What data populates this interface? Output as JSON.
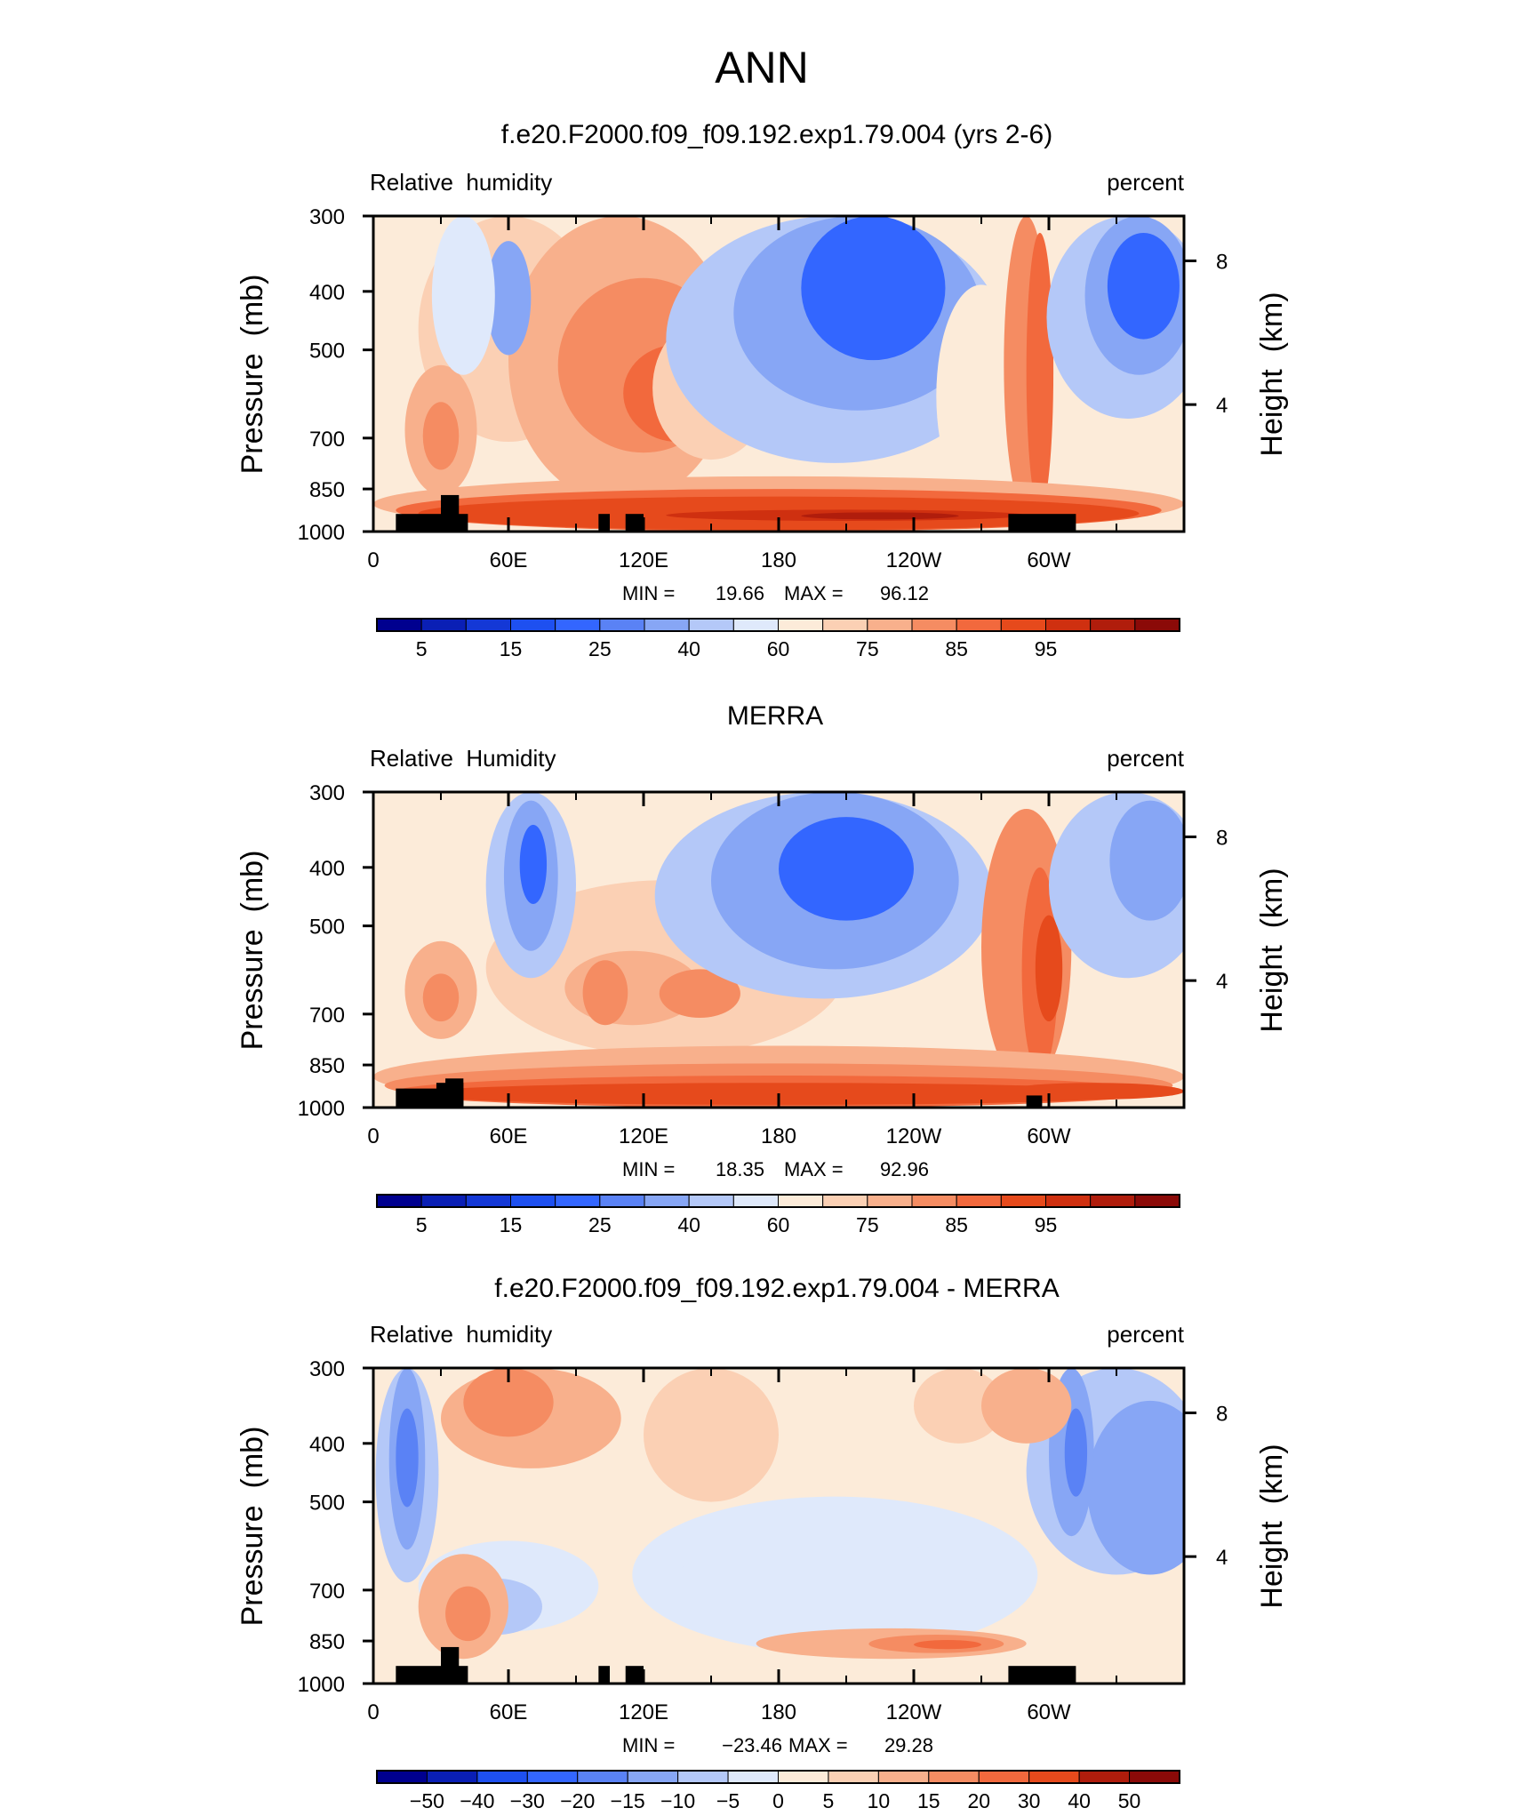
{
  "page": {
    "main_title": "ANN"
  },
  "colormaps": {
    "full": [
      "#00008f",
      "#0a1fb5",
      "#1438d6",
      "#1e50f0",
      "#3366ff",
      "#5a82f5",
      "#87a6f5",
      "#b4c8f8",
      "#dfe9fb",
      "#fcebd9",
      "#fbd0b4",
      "#f8b08c",
      "#f58c62",
      "#f2693d",
      "#e64a1c",
      "#cf3010",
      "#b01d0c",
      "#8b0a08"
    ],
    "diff": [
      "#00008f",
      "#0a1fb5",
      "#1e50f0",
      "#3366ff",
      "#5a82f5",
      "#87a6f5",
      "#b4c8f8",
      "#dfe9fb",
      "#fcebd9",
      "#fbd0b4",
      "#f8b08c",
      "#f58c62",
      "#f2693d",
      "#e64a1c",
      "#b01d0c",
      "#8b0a08"
    ]
  },
  "chart_data": [
    {
      "type": "heatmap",
      "title": "f.e20.F2000.f09_f09.192.exp1.79.004 (yrs 2-6)",
      "left_label": "Relative  humidity",
      "right_label": "percent",
      "ylabel": "Pressure  (mb)",
      "ylabel_right": "Height  (km)",
      "x_ticks": [
        "0",
        "60E",
        "120E",
        "180",
        "120W",
        "60W"
      ],
      "y_ticks": [
        "300",
        "400",
        "500",
        "700",
        "850",
        "1000"
      ],
      "y_ticks_right": [
        "8",
        "4"
      ],
      "ylim": [
        1000,
        300
      ],
      "min_label": "MIN =",
      "min": "19.66",
      "max_label": "MAX =",
      "max": "96.12",
      "colorbar": {
        "levels": [
          5,
          10,
          15,
          20,
          25,
          30,
          40,
          50,
          60,
          65,
          70,
          75,
          80,
          85,
          90,
          95
        ],
        "labels": [
          "5",
          "15",
          "25",
          "40",
          "60",
          "75",
          "85",
          "95"
        ],
        "colormap": "full"
      }
    },
    {
      "type": "heatmap",
      "title": "MERRA",
      "left_label": "Relative  Humidity",
      "right_label": "percent",
      "ylabel": "Pressure  (mb)",
      "ylabel_right": "Height  (km)",
      "x_ticks": [
        "0",
        "60E",
        "120E",
        "180",
        "120W",
        "60W"
      ],
      "y_ticks": [
        "300",
        "400",
        "500",
        "700",
        "850",
        "1000"
      ],
      "y_ticks_right": [
        "8",
        "4"
      ],
      "ylim": [
        1000,
        300
      ],
      "min_label": "MIN =",
      "min": "18.35",
      "max_label": "MAX =",
      "max": "92.96",
      "colorbar": {
        "levels": [
          5,
          10,
          15,
          20,
          25,
          30,
          40,
          50,
          60,
          65,
          70,
          75,
          80,
          85,
          90,
          95
        ],
        "labels": [
          "5",
          "15",
          "25",
          "40",
          "60",
          "75",
          "85",
          "95"
        ],
        "colormap": "full"
      }
    },
    {
      "type": "heatmap",
      "title": "f.e20.F2000.f09_f09.192.exp1.79.004 - MERRA",
      "left_label": "Relative  humidity",
      "right_label": "percent",
      "ylabel": "Pressure  (mb)",
      "ylabel_right": "Height  (km)",
      "x_ticks": [
        "0",
        "60E",
        "120E",
        "180",
        "120W",
        "60W"
      ],
      "y_ticks": [
        "300",
        "400",
        "500",
        "700",
        "850",
        "1000"
      ],
      "y_ticks_right": [
        "8",
        "4"
      ],
      "ylim": [
        1000,
        300
      ],
      "min_label": "MIN =",
      "min": "−23.46",
      "max_label": "MAX =",
      "max": "29.28",
      "colorbar": {
        "levels": [
          -50,
          -40,
          -30,
          -20,
          -15,
          -10,
          -5,
          0,
          5,
          10,
          15,
          20,
          30,
          40,
          50
        ],
        "labels": [
          "−50",
          "−40",
          "−30",
          "−20",
          "−15",
          "−10",
          "−5",
          "0",
          "5",
          "10",
          "15",
          "20",
          "30",
          "40",
          "50"
        ],
        "colormap": "diff"
      }
    }
  ]
}
